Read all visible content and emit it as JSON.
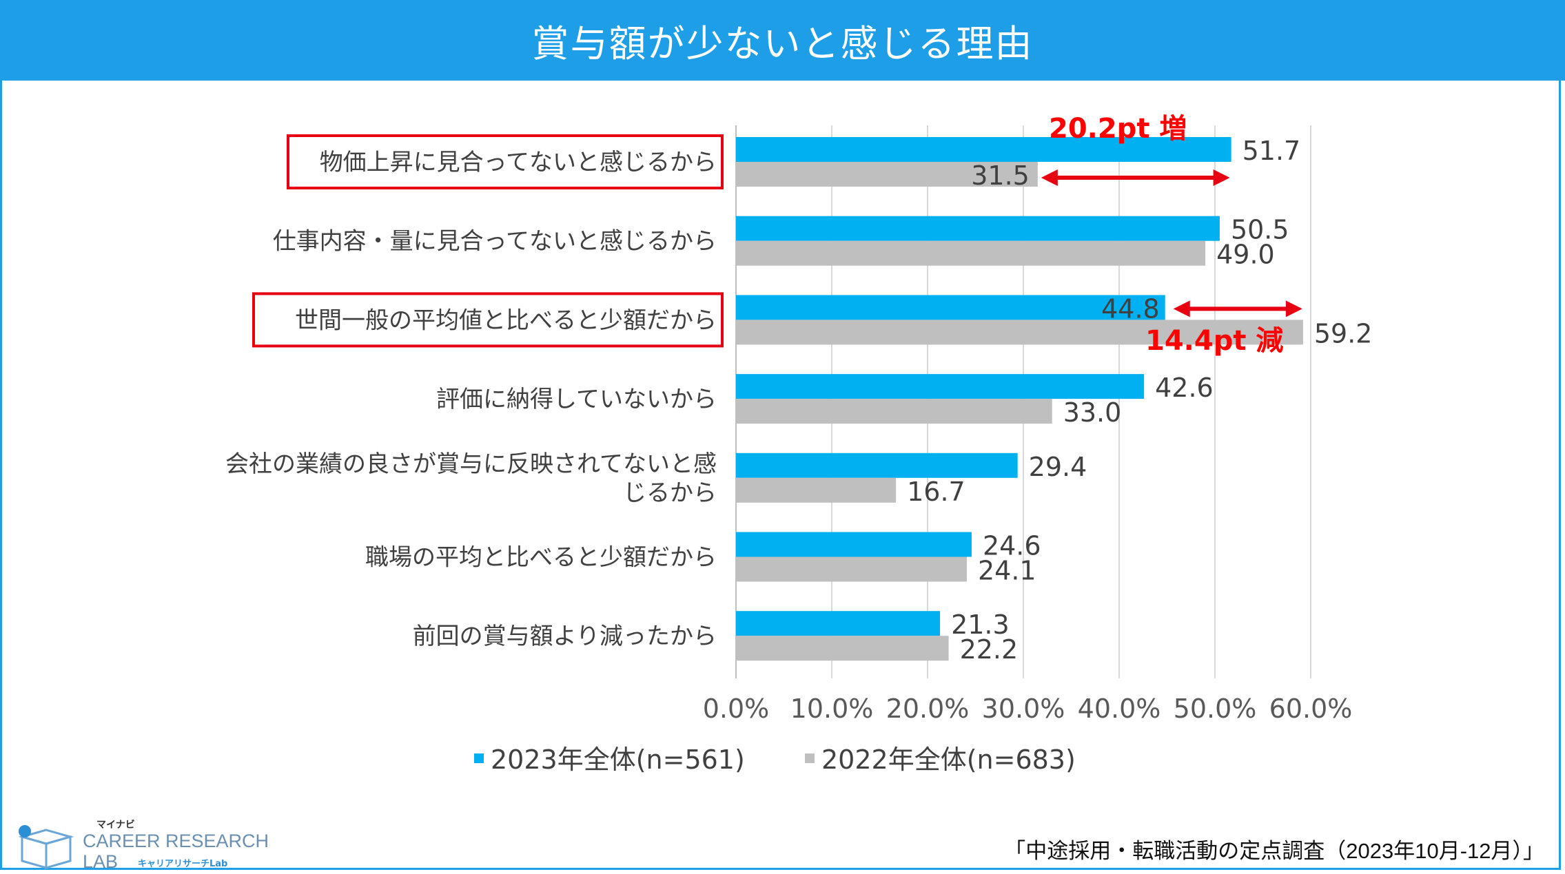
{
  "title": "賞与額が少ないと感じる理由",
  "chart_data": {
    "type": "bar",
    "orientation": "horizontal",
    "categories": [
      "物価上昇に見合ってないと感じるから",
      "仕事内容・量に見合ってないと感じるから",
      "世間一般の平均値と比べると少額だから",
      "評価に納得していないから",
      "会社の業績の良さが賞与に反映されてないと感じるから",
      "職場の平均と比べると少額だから",
      "前回の賞与額より減ったから"
    ],
    "category_lines": [
      [
        "物価上昇に見合ってないと感じるから"
      ],
      [
        "仕事内容・量に見合ってないと感じるから"
      ],
      [
        "世間一般の平均値と比べると少額だから"
      ],
      [
        "評価に納得していないから"
      ],
      [
        "会社の業績の良さが賞与に反映されてないと感",
        "じるから"
      ],
      [
        "職場の平均と比べると少額だから"
      ],
      [
        "前回の賞与額より減ったから"
      ]
    ],
    "highlighted_categories": [
      0,
      2
    ],
    "series": [
      {
        "name": "2023年全体(n=561)",
        "color": "#00b0f0",
        "values": [
          51.7,
          50.5,
          44.8,
          42.6,
          29.4,
          24.6,
          21.3
        ],
        "labels": [
          "51.7",
          "50.5",
          "44.8",
          "42.6",
          "29.4",
          "24.6",
          "21.3"
        ]
      },
      {
        "name": "2022年全体(n=683)",
        "color": "#bfbfbf",
        "values": [
          31.5,
          49.0,
          59.2,
          33.0,
          16.7,
          24.1,
          22.2
        ],
        "labels": [
          "31.5",
          "49.0",
          "59.2",
          "33.0",
          "16.7",
          "24.1",
          "22.2"
        ]
      }
    ],
    "xlim": [
      0,
      60
    ],
    "xticks": [
      0,
      10,
      20,
      30,
      40,
      50,
      60
    ],
    "xtick_labels": [
      "0.0%",
      "10.0%",
      "20.0%",
      "30.0%",
      "40.0%",
      "50.0%",
      "60.0%"
    ],
    "grid": true,
    "legend_position": "bottom",
    "annotations": [
      {
        "text": "20.2pt 増",
        "category_index": 0,
        "from": 31.5,
        "to": 51.7,
        "color": "#ff0000"
      },
      {
        "text": "14.4pt 減",
        "category_index": 2,
        "from": 44.8,
        "to": 59.2,
        "color": "#ff0000"
      }
    ]
  },
  "logo": {
    "top_text": "マイナビ",
    "line1": "CAREER RESEARCH",
    "line2": "LAB",
    "sub": "キャリアリサーチLab"
  },
  "source": "「中途採用・転職活動の定点調査（2023年10月-12月）」"
}
